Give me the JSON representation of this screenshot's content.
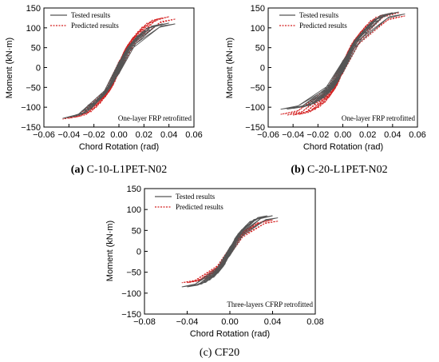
{
  "colors": {
    "tested": "#555555",
    "predicted": "#d42020"
  },
  "legend": {
    "tested": "Tested results",
    "predicted": "Predicted results"
  },
  "chart_data": [
    {
      "type": "line",
      "caption_letter": "(a)",
      "caption_text": "C-10-L1PET-N02",
      "xlabel": "Chord Rotation (rad)",
      "ylabel": "Moment (kN·m)",
      "annotation": "One-layer FRP retrofitted",
      "xlim": [
        -0.06,
        0.06
      ],
      "ylim": [
        -150,
        150
      ],
      "xticks": [
        -0.06,
        -0.04,
        -0.02,
        0.0,
        0.02,
        0.04,
        0.06
      ],
      "xtick_labels": [
        "−0.06",
        "−0.04",
        "−0.02",
        "0.00",
        "0.02",
        "0.04",
        "0.06"
      ],
      "yticks": [
        -150,
        -100,
        -50,
        0,
        50,
        100,
        150
      ],
      "ytick_labels": [
        "−150",
        "−100",
        "−50",
        "0",
        "50",
        "100",
        "150"
      ],
      "grid": false,
      "legend_position": "top-left",
      "series": [
        {
          "name": "Tested results",
          "style": "solid",
          "cycles": [
            [
              0.003,
              25
            ],
            [
              0.006,
              40
            ],
            [
              0.01,
              55
            ],
            [
              0.015,
              70
            ],
            [
              0.02,
              85
            ],
            [
              0.025,
              95
            ],
            [
              0.03,
              105
            ],
            [
              0.035,
              110
            ],
            [
              0.04,
              112
            ],
            [
              0.045,
              110
            ]
          ],
          "neg_cycles": [
            [
              0.003,
              25
            ],
            [
              0.006,
              40
            ],
            [
              0.01,
              55
            ],
            [
              0.015,
              70
            ],
            [
              0.02,
              85
            ],
            [
              0.025,
              95
            ],
            [
              0.03,
              110
            ],
            [
              0.035,
              120
            ],
            [
              0.04,
              125
            ],
            [
              0.045,
              128
            ]
          ]
        },
        {
          "name": "Predicted results",
          "style": "dashed",
          "cycles": [
            [
              0.003,
              28
            ],
            [
              0.006,
              45
            ],
            [
              0.01,
              62
            ],
            [
              0.015,
              80
            ],
            [
              0.02,
              95
            ],
            [
              0.025,
              108
            ],
            [
              0.03,
              118
            ],
            [
              0.035,
              125
            ],
            [
              0.04,
              128
            ],
            [
              0.045,
              122
            ]
          ],
          "neg_cycles": [
            [
              0.003,
              28
            ],
            [
              0.006,
              45
            ],
            [
              0.01,
              62
            ],
            [
              0.015,
              80
            ],
            [
              0.02,
              95
            ],
            [
              0.025,
              108
            ],
            [
              0.03,
              118
            ],
            [
              0.035,
              125
            ],
            [
              0.04,
              128
            ],
            [
              0.045,
              130
            ]
          ]
        }
      ]
    },
    {
      "type": "line",
      "caption_letter": "(b)",
      "caption_text": "C-20-L1PET-N02",
      "xlabel": "Chord Rotation (rad)",
      "ylabel": "Moment (kN·m)",
      "annotation": "One-layer FRP retrofitted",
      "xlim": [
        -0.06,
        0.06
      ],
      "ylim": [
        -150,
        150
      ],
      "xticks": [
        -0.06,
        -0.04,
        -0.02,
        0.0,
        0.02,
        0.04,
        0.06
      ],
      "xtick_labels": [
        "−0.06",
        "−0.04",
        "−0.02",
        "0.00",
        "0.02",
        "0.04",
        "0.06"
      ],
      "yticks": [
        -150,
        -100,
        -50,
        0,
        50,
        100,
        150
      ],
      "ytick_labels": [
        "−150",
        "−100",
        "−50",
        "0",
        "50",
        "100",
        "150"
      ],
      "grid": false,
      "legend_position": "top-left",
      "series": [
        {
          "name": "Tested results",
          "style": "solid",
          "cycles": [
            [
              0.003,
              25
            ],
            [
              0.006,
              40
            ],
            [
              0.01,
              55
            ],
            [
              0.015,
              72
            ],
            [
              0.02,
              90
            ],
            [
              0.025,
              105
            ],
            [
              0.03,
              120
            ],
            [
              0.035,
              130
            ],
            [
              0.04,
              138
            ],
            [
              0.045,
              140
            ],
            [
              0.05,
              135
            ]
          ],
          "neg_cycles": [
            [
              0.003,
              25
            ],
            [
              0.006,
              40
            ],
            [
              0.01,
              55
            ],
            [
              0.015,
              68
            ],
            [
              0.02,
              80
            ],
            [
              0.025,
              88
            ],
            [
              0.03,
              95
            ],
            [
              0.035,
              100
            ],
            [
              0.04,
              103
            ],
            [
              0.045,
              105
            ],
            [
              0.05,
              105
            ]
          ]
        },
        {
          "name": "Predicted results",
          "style": "dashed",
          "cycles": [
            [
              0.003,
              28
            ],
            [
              0.006,
              45
            ],
            [
              0.01,
              62
            ],
            [
              0.015,
              80
            ],
            [
              0.02,
              98
            ],
            [
              0.025,
              112
            ],
            [
              0.03,
              125
            ],
            [
              0.035,
              133
            ],
            [
              0.04,
              138
            ],
            [
              0.045,
              138
            ],
            [
              0.05,
              130
            ]
          ],
          "neg_cycles": [
            [
              0.003,
              28
            ],
            [
              0.006,
              45
            ],
            [
              0.01,
              62
            ],
            [
              0.015,
              80
            ],
            [
              0.02,
              95
            ],
            [
              0.025,
              105
            ],
            [
              0.03,
              112
            ],
            [
              0.035,
              118
            ],
            [
              0.04,
              120
            ],
            [
              0.045,
              120
            ],
            [
              0.05,
              118
            ]
          ]
        }
      ]
    },
    {
      "type": "line",
      "caption_letter": "(c)",
      "caption_text": "CF20",
      "xlabel": "Chord Rotation (rad)",
      "ylabel": "Moment (kN·m)",
      "annotation": "Three-layers CFRP retrofitted",
      "xlim": [
        -0.08,
        0.08
      ],
      "ylim": [
        -150,
        150
      ],
      "xticks": [
        -0.08,
        -0.04,
        0.0,
        0.04,
        0.08
      ],
      "xtick_labels": [
        "−0.08",
        "−0.04",
        "0.00",
        "0.04",
        "0.08"
      ],
      "yticks": [
        -150,
        -100,
        -50,
        0,
        50,
        100,
        150
      ],
      "ytick_labels": [
        "−150",
        "−100",
        "−50",
        "0",
        "50",
        "100",
        "150"
      ],
      "grid": false,
      "legend_position": "top-left",
      "series": [
        {
          "name": "Tested results",
          "style": "solid",
          "cycles": [
            [
              0.005,
              25
            ],
            [
              0.01,
              40
            ],
            [
              0.015,
              55
            ],
            [
              0.02,
              65
            ],
            [
              0.025,
              75
            ],
            [
              0.03,
              80
            ],
            [
              0.035,
              85
            ],
            [
              0.04,
              85
            ],
            [
              0.045,
              80
            ]
          ],
          "neg_cycles": [
            [
              0.005,
              25
            ],
            [
              0.01,
              40
            ],
            [
              0.015,
              55
            ],
            [
              0.02,
              65
            ],
            [
              0.025,
              72
            ],
            [
              0.03,
              78
            ],
            [
              0.035,
              82
            ],
            [
              0.04,
              85
            ],
            [
              0.045,
              85
            ]
          ]
        },
        {
          "name": "Predicted results",
          "style": "dashed",
          "cycles": [
            [
              0.005,
              22
            ],
            [
              0.01,
              35
            ],
            [
              0.015,
              45
            ],
            [
              0.02,
              55
            ],
            [
              0.025,
              62
            ],
            [
              0.03,
              68
            ],
            [
              0.035,
              72
            ],
            [
              0.04,
              75
            ],
            [
              0.045,
              72
            ]
          ],
          "neg_cycles": [
            [
              0.005,
              22
            ],
            [
              0.01,
              35
            ],
            [
              0.015,
              45
            ],
            [
              0.02,
              55
            ],
            [
              0.025,
              62
            ],
            [
              0.03,
              68
            ],
            [
              0.035,
              72
            ],
            [
              0.04,
              75
            ],
            [
              0.045,
              75
            ]
          ]
        }
      ]
    }
  ]
}
